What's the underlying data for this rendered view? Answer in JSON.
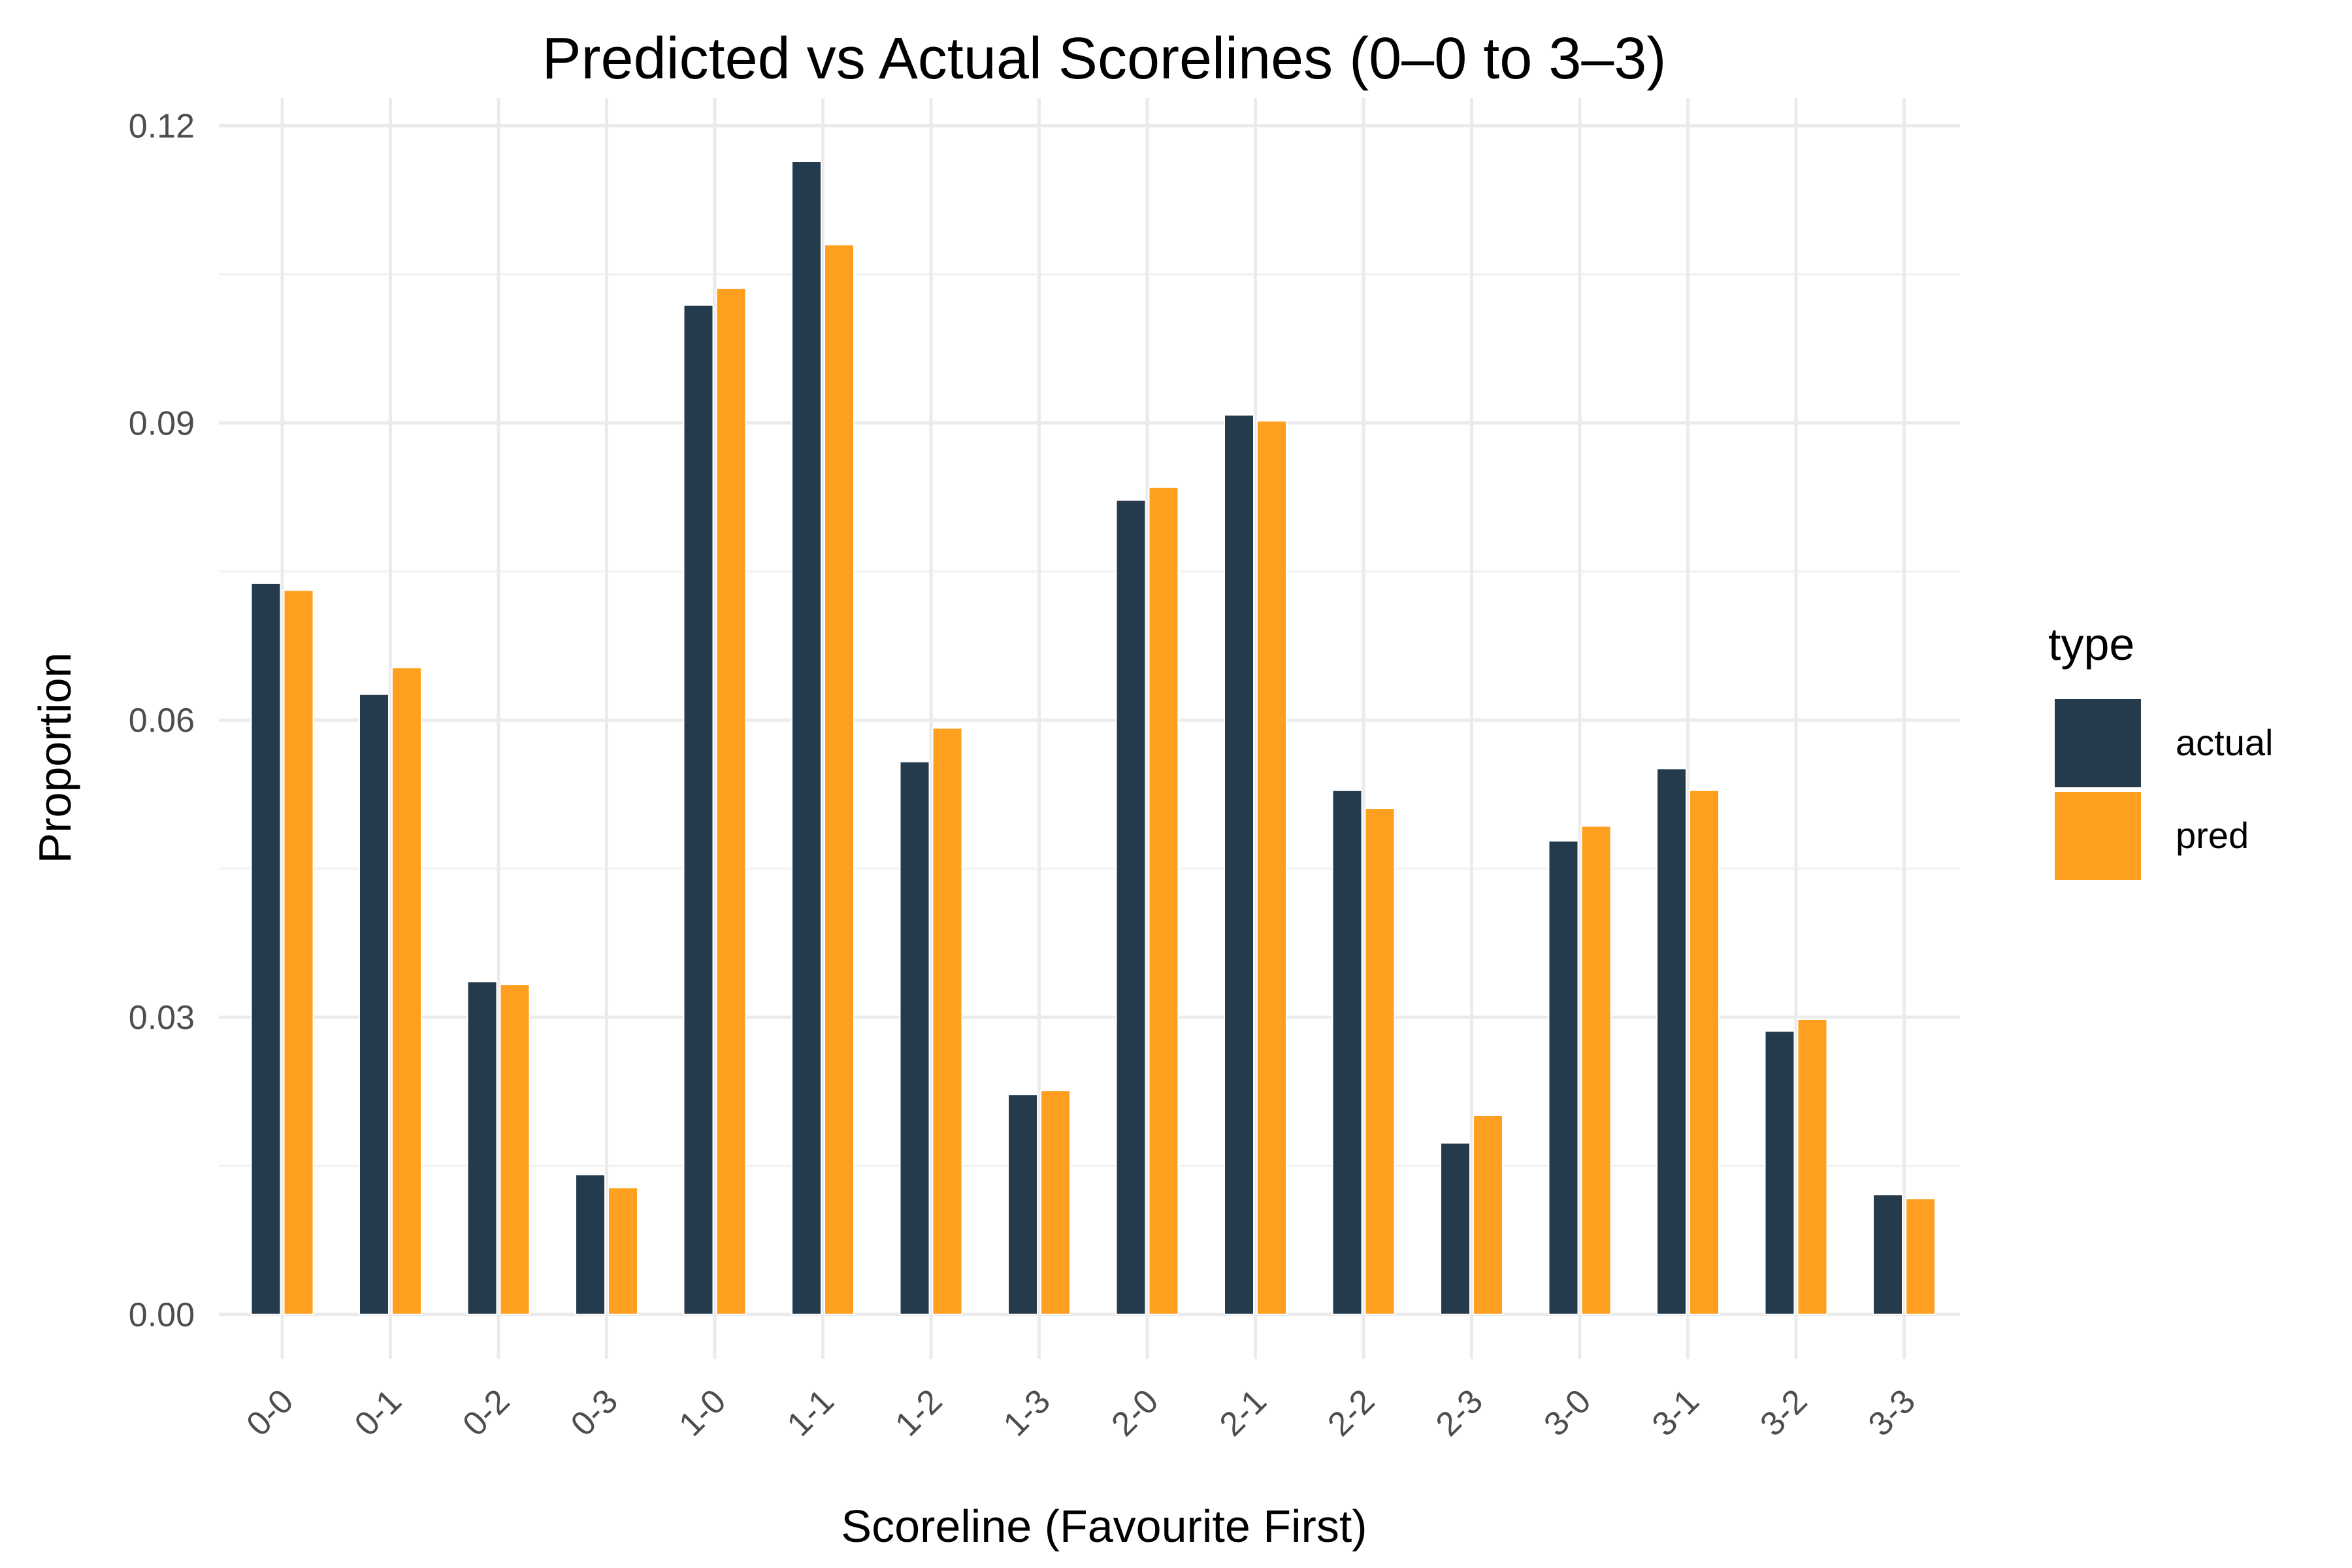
{
  "chart_data": {
    "type": "bar",
    "title": "Predicted vs Actual Scorelines (0–0 to 3–3)",
    "xlabel": "Scoreline (Favourite First)",
    "ylabel": "Proportion",
    "categories": [
      "0-0",
      "0-1",
      "0-2",
      "0-3",
      "1-0",
      "1-1",
      "1-2",
      "1-3",
      "2-0",
      "2-1",
      "2-2",
      "2-3",
      "3-0",
      "3-1",
      "3-2",
      "3-3"
    ],
    "series": [
      {
        "name": "actual",
        "color": "#243b4d",
        "values": [
          0.0738,
          0.0626,
          0.0336,
          0.0141,
          0.1019,
          0.1164,
          0.0558,
          0.0222,
          0.0822,
          0.0908,
          0.0529,
          0.0173,
          0.0478,
          0.0551,
          0.0286,
          0.0121
        ]
      },
      {
        "name": "pred",
        "color": "#ff9f1f",
        "values": [
          0.0731,
          0.0653,
          0.0333,
          0.0128,
          0.1036,
          0.108,
          0.0592,
          0.0226,
          0.0835,
          0.0902,
          0.0511,
          0.0201,
          0.0493,
          0.0529,
          0.0298,
          0.0117
        ]
      }
    ],
    "ylim": [
      -0.0045,
      0.1228
    ],
    "yticks": [
      0.0,
      0.03,
      0.06,
      0.09,
      0.12
    ],
    "ytick_labels": [
      "0.00",
      "0.03",
      "0.06",
      "0.09",
      "0.12"
    ],
    "grid": true,
    "legend": {
      "title": "type",
      "placement": "right",
      "entries": [
        "actual",
        "pred"
      ]
    }
  }
}
